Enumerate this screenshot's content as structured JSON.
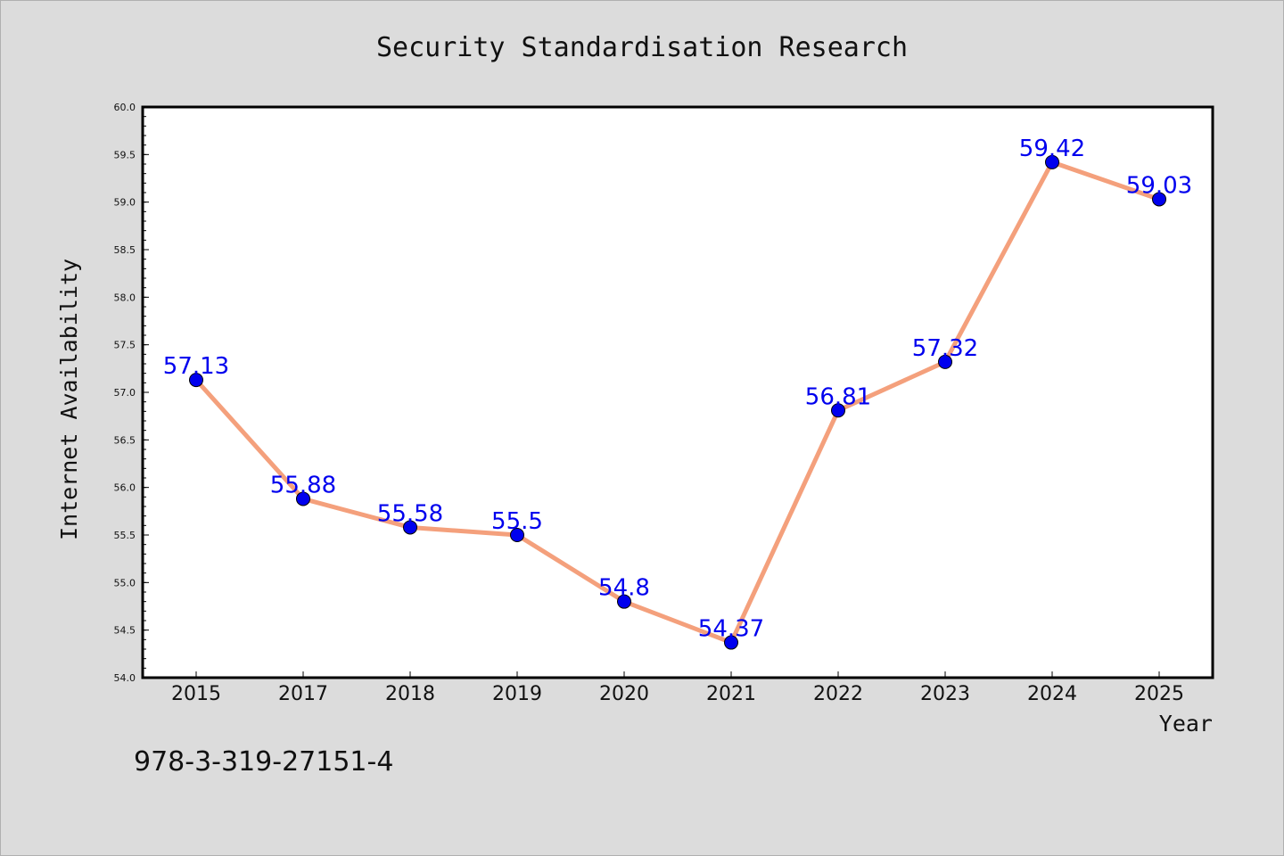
{
  "chart_data": {
    "type": "line",
    "title": "Security Standardisation Research",
    "xlabel": "Year",
    "ylabel": "Internet Availability",
    "categories": [
      "2015",
      "2017",
      "2018",
      "2019",
      "2020",
      "2021",
      "2022",
      "2023",
      "2024",
      "2025"
    ],
    "series": [
      {
        "values": [
          57.13,
          55.88,
          55.58,
          55.5,
          54.8,
          54.37,
          56.81,
          57.32,
          59.42,
          59.03
        ],
        "labels": [
          "57.13",
          "55.88",
          "55.58",
          "55.5",
          "54.8",
          "54.37",
          "56.81",
          "57.32",
          "59.42",
          "59.03"
        ],
        "line_color": "#f4a07c",
        "marker_color": "#0000ee",
        "label_color": "#0000ee"
      }
    ],
    "ylim": [
      54.0,
      60.0
    ],
    "yticks": [
      "54.0",
      "54.5",
      "55.0",
      "55.5",
      "56.0",
      "56.5",
      "57.0",
      "57.5",
      "58.0",
      "58.5",
      "59.0",
      "59.5",
      "60.0"
    ],
    "grid": false,
    "legend": "none"
  },
  "footer_text": "978-3-319-27151-4",
  "colors": {
    "background": "#dcdcdc",
    "plot_background": "#ffffff",
    "axis": "#000000",
    "text": "#111111"
  }
}
